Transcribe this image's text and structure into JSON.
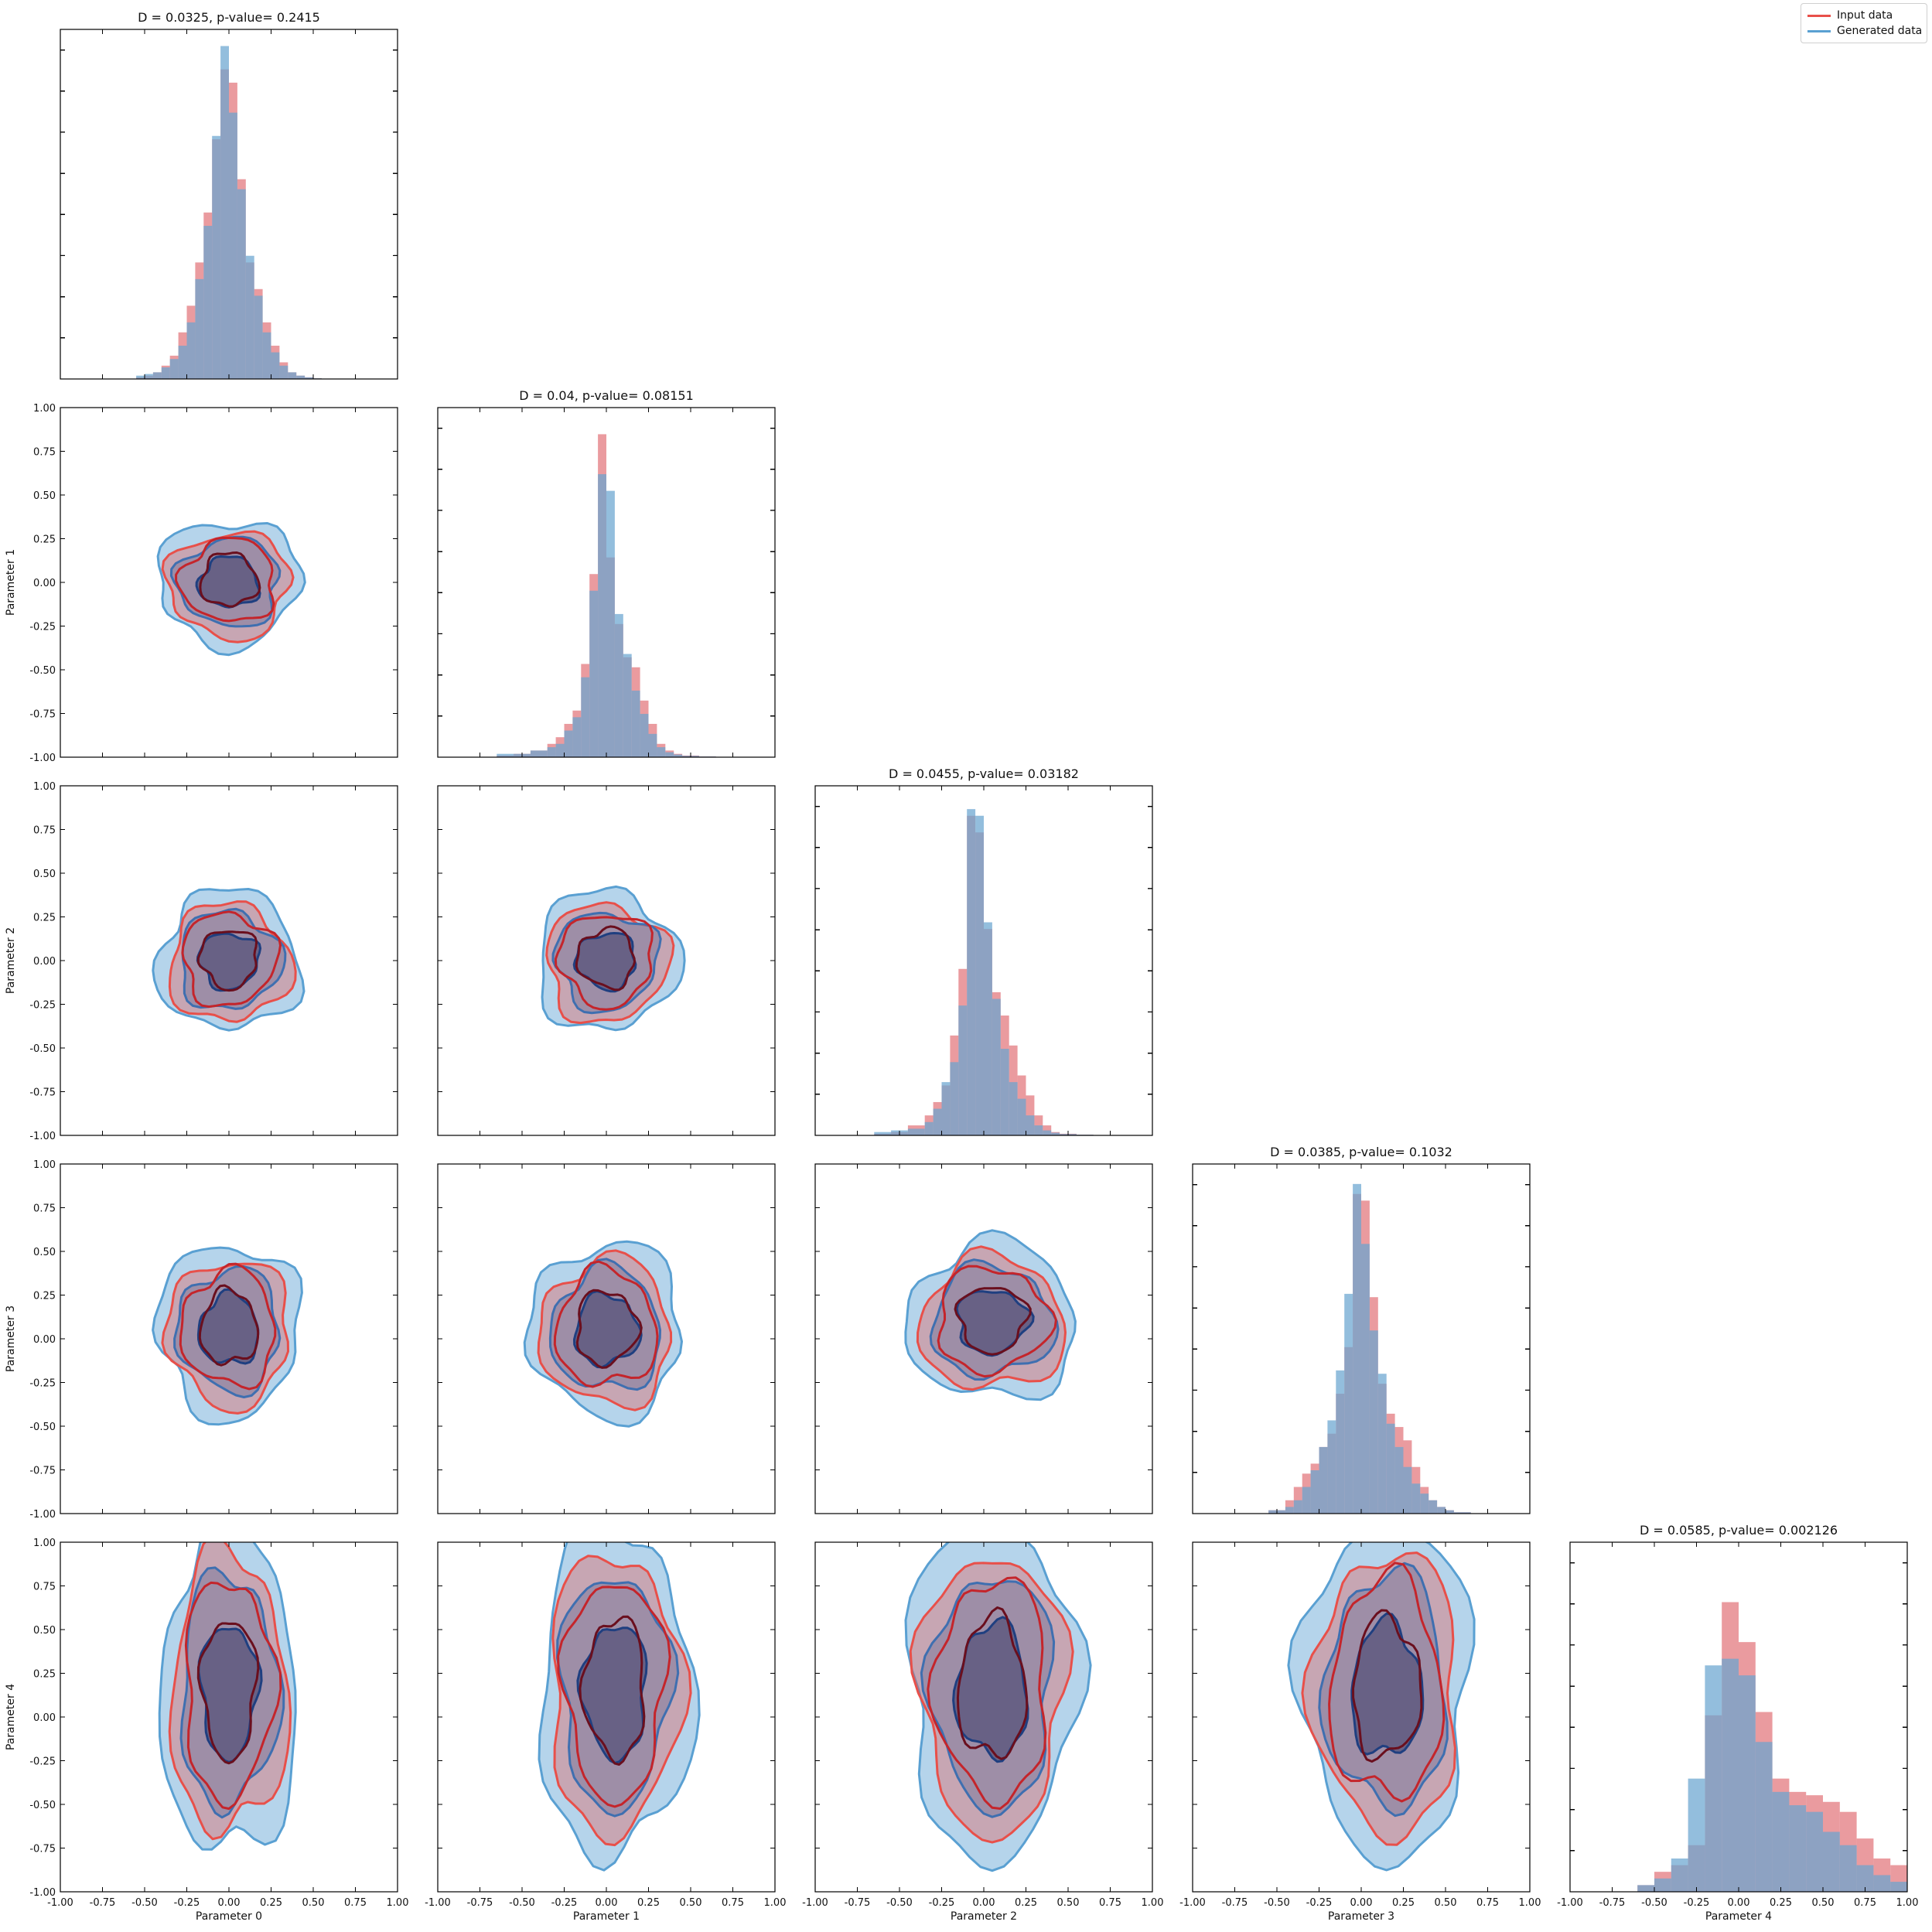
{
  "legend": {
    "input_label": "Input data",
    "generated_label": "Generated data",
    "placement": "upper-right"
  },
  "colors": {
    "input": "#e8504a",
    "generated": "#5aa0d2",
    "hist_input": "#e2747a",
    "hist_generated": "#6aa5d0",
    "overlap": "#7b7a9c",
    "core": "#55527a"
  },
  "chart_data": {
    "type": "corner",
    "parameters": [
      "Parameter 0",
      "Parameter 1",
      "Parameter 2",
      "Parameter 3",
      "Parameter 4"
    ],
    "xlim": [
      -1.0,
      1.0
    ],
    "ylim": [
      -1.0,
      1.0
    ],
    "ticks": [
      "-1.00",
      "-0.75",
      "-0.50",
      "-0.25",
      "0.00",
      "0.25",
      "0.50",
      "0.75",
      "1.00"
    ],
    "diagonal_titles": [
      "D = 0.0325, p-value= 0.2415",
      "D = 0.04, p-value= 0.08151",
      "D = 0.0455, p-value= 0.03182",
      "D = 0.0385, p-value= 0.1032",
      "D = 0.0585, p-value= 0.002126"
    ],
    "histograms": [
      {
        "bins": [
          -0.55,
          -0.5,
          -0.45,
          -0.4,
          -0.35,
          -0.3,
          -0.25,
          -0.2,
          -0.15,
          -0.1,
          -0.05,
          0.0,
          0.05,
          0.1,
          0.15,
          0.2,
          0.25,
          0.3,
          0.35,
          0.4,
          0.45,
          0.5,
          0.55
        ],
        "input": [
          0.005,
          0.01,
          0.02,
          0.04,
          0.07,
          0.14,
          0.22,
          0.35,
          0.5,
          0.72,
          0.93,
          0.89,
          0.6,
          0.35,
          0.27,
          0.17,
          0.1,
          0.05,
          0.02,
          0.01,
          0.005,
          0.002
        ],
        "generated": [
          0.01,
          0.015,
          0.02,
          0.035,
          0.06,
          0.1,
          0.17,
          0.3,
          0.46,
          0.73,
          1.0,
          0.8,
          0.57,
          0.37,
          0.25,
          0.14,
          0.08,
          0.04,
          0.02,
          0.01,
          0.005,
          0.002
        ]
      },
      {
        "bins": [
          -0.65,
          -0.55,
          -0.45,
          -0.35,
          -0.3,
          -0.25,
          -0.2,
          -0.15,
          -0.1,
          -0.05,
          0.0,
          0.05,
          0.1,
          0.15,
          0.2,
          0.25,
          0.3,
          0.35,
          0.4,
          0.45,
          0.55,
          0.65,
          0.75
        ],
        "input": [
          0.005,
          0.01,
          0.02,
          0.04,
          0.06,
          0.1,
          0.14,
          0.28,
          0.55,
          0.97,
          0.6,
          0.4,
          0.3,
          0.27,
          0.17,
          0.1,
          0.04,
          0.02,
          0.01,
          0.005,
          0.002,
          0.001
        ],
        "generated": [
          0.01,
          0.01,
          0.02,
          0.03,
          0.04,
          0.08,
          0.12,
          0.24,
          0.5,
          0.85,
          0.8,
          0.43,
          0.31,
          0.2,
          0.13,
          0.07,
          0.03,
          0.015,
          0.008,
          0.004,
          0.002,
          0.001
        ]
      },
      {
        "bins": [
          -0.65,
          -0.55,
          -0.45,
          -0.35,
          -0.3,
          -0.25,
          -0.2,
          -0.15,
          -0.1,
          -0.05,
          0.0,
          0.05,
          0.1,
          0.15,
          0.2,
          0.25,
          0.3,
          0.35,
          0.4,
          0.45,
          0.55,
          0.65,
          0.75
        ],
        "input": [
          0.005,
          0.01,
          0.03,
          0.06,
          0.1,
          0.15,
          0.3,
          0.5,
          0.96,
          0.91,
          0.62,
          0.43,
          0.36,
          0.27,
          0.18,
          0.12,
          0.06,
          0.03,
          0.01,
          0.005,
          0.002,
          0.001
        ],
        "generated": [
          0.01,
          0.015,
          0.02,
          0.04,
          0.08,
          0.16,
          0.22,
          0.39,
          0.98,
          0.96,
          0.64,
          0.41,
          0.26,
          0.16,
          0.11,
          0.06,
          0.03,
          0.015,
          0.008,
          0.004,
          0.002,
          0.001
        ]
      },
      {
        "bins": [
          -0.55,
          -0.45,
          -0.4,
          -0.35,
          -0.3,
          -0.25,
          -0.2,
          -0.15,
          -0.1,
          -0.05,
          0.0,
          0.05,
          0.1,
          0.15,
          0.2,
          0.25,
          0.3,
          0.35,
          0.4,
          0.45,
          0.5,
          0.55,
          0.65
        ],
        "input": [
          0.01,
          0.04,
          0.08,
          0.12,
          0.15,
          0.2,
          0.24,
          0.36,
          0.5,
          0.96,
          0.94,
          0.65,
          0.39,
          0.3,
          0.26,
          0.22,
          0.14,
          0.08,
          0.04,
          0.02,
          0.01,
          0.004
        ],
        "generated": [
          0.01,
          0.02,
          0.04,
          0.08,
          0.13,
          0.2,
          0.28,
          0.43,
          0.66,
          0.99,
          0.81,
          0.55,
          0.42,
          0.27,
          0.2,
          0.14,
          0.09,
          0.06,
          0.04,
          0.02,
          0.01,
          0.004
        ]
      },
      {
        "bins": [
          -0.6,
          -0.5,
          -0.4,
          -0.3,
          -0.2,
          -0.1,
          0.0,
          0.1,
          0.2,
          0.3,
          0.4,
          0.5,
          0.6,
          0.7,
          0.8,
          0.9,
          1.0
        ],
        "input": [
          0.02,
          0.06,
          0.08,
          0.14,
          0.53,
          0.87,
          0.75,
          0.54,
          0.34,
          0.3,
          0.29,
          0.27,
          0.24,
          0.16,
          0.1,
          0.08
        ],
        "generated": [
          0.02,
          0.04,
          0.1,
          0.34,
          0.68,
          0.7,
          0.65,
          0.45,
          0.3,
          0.26,
          0.24,
          0.18,
          0.14,
          0.08,
          0.05,
          0.03
        ]
      }
    ],
    "contour_pairs": [
      {
        "x_param": 0,
        "y_param": 1,
        "center": [
          0.0,
          0.0
        ],
        "spread": [
          0.42,
          0.36
        ]
      },
      {
        "x_param": 0,
        "y_param": 2,
        "center": [
          0.0,
          0.0
        ],
        "spread": [
          0.42,
          0.4
        ]
      },
      {
        "x_param": 1,
        "y_param": 2,
        "center": [
          0.0,
          0.0
        ],
        "spread": [
          0.42,
          0.4
        ]
      },
      {
        "x_param": 0,
        "y_param": 3,
        "center": [
          0.0,
          0.05
        ],
        "spread": [
          0.42,
          0.5
        ]
      },
      {
        "x_param": 1,
        "y_param": 3,
        "center": [
          0.0,
          0.05
        ],
        "spread": [
          0.45,
          0.5
        ]
      },
      {
        "x_param": 2,
        "y_param": 3,
        "center": [
          0.05,
          0.1
        ],
        "spread": [
          0.5,
          0.45
        ]
      },
      {
        "x_param": 0,
        "y_param": 4,
        "center": [
          0.0,
          0.15
        ],
        "spread": [
          0.4,
          0.95
        ]
      },
      {
        "x_param": 1,
        "y_param": 4,
        "center": [
          0.05,
          0.15
        ],
        "spread": [
          0.45,
          0.95
        ]
      },
      {
        "x_param": 2,
        "y_param": 4,
        "center": [
          0.05,
          0.15
        ],
        "spread": [
          0.5,
          0.95
        ]
      },
      {
        "x_param": 3,
        "y_param": 4,
        "center": [
          0.15,
          0.15
        ],
        "spread": [
          0.5,
          0.95
        ]
      }
    ],
    "contour_levels": 3,
    "grid": false
  }
}
